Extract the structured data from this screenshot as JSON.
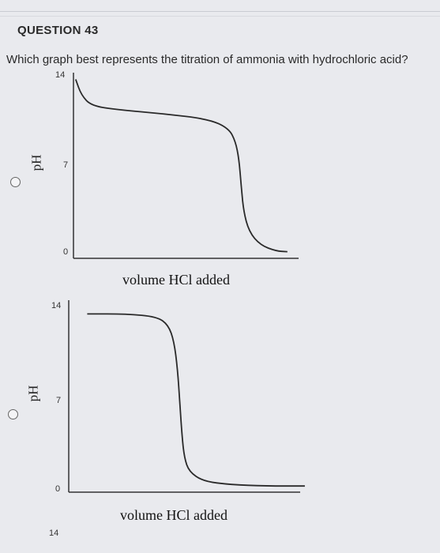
{
  "question": {
    "number_label": "QUESTION 43",
    "text": "Which graph best represents the titration of ammonia with hydrochloric acid?"
  },
  "options": [
    {
      "chart_data": {
        "type": "line",
        "title": "",
        "ylabel": "pH",
        "xlabel": "volume HCl added",
        "yticks": [
          "14",
          "7",
          "0"
        ],
        "ylim": [
          0,
          14
        ],
        "xlim": [
          0,
          10
        ],
        "series": [
          {
            "x": [
              0.1,
              0.35,
              0.8,
              2,
              4,
              6,
              6.9,
              7.2,
              7.35,
              7.45,
              7.55,
              7.8,
              8.3,
              9,
              9.5
            ],
            "y": [
              13.5,
              12.3,
              11.5,
              11.2,
              10.9,
              10.5,
              9.8,
              8.8,
              7.5,
              5.5,
              3.6,
              2.0,
              1.0,
              0.55,
              0.5
            ]
          }
        ]
      }
    },
    {
      "chart_data": {
        "type": "line",
        "title": "",
        "ylabel": "pH",
        "xlabel": "volume HCl added",
        "yticks": [
          "14",
          "7",
          "0"
        ],
        "ylim": [
          0,
          14
        ],
        "xlim": [
          0,
          10
        ],
        "series": [
          {
            "x": [
              0.8,
              2.5,
              3.8,
              4.3,
              4.55,
              4.7,
              4.8,
              4.9,
              5.0,
              5.2,
              5.8,
              7,
              8.5,
              10.2
            ],
            "y": [
              13.0,
              13.0,
              12.8,
              12.2,
              11.0,
              9.0,
              6.5,
              4.0,
              2.5,
              1.5,
              0.8,
              0.55,
              0.45,
              0.45
            ]
          }
        ]
      }
    }
  ],
  "next_graph_partial_tick": "14"
}
